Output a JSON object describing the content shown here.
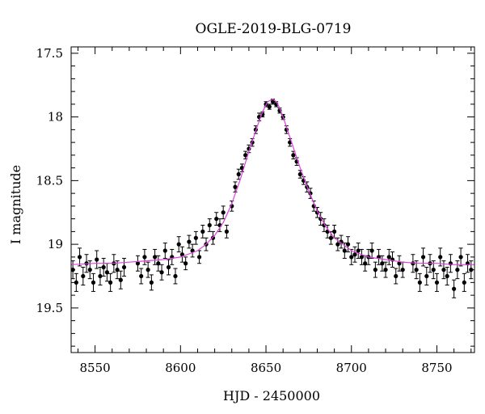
{
  "chart_data": {
    "type": "scatter",
    "title": "OGLE-2019-BLG-0719",
    "xlabel": "HJD - 2450000",
    "ylabel": "I magnitude",
    "xlim": [
      8536,
      8772
    ],
    "ylim": [
      19.85,
      17.45
    ],
    "y_inverted": true,
    "grid": false,
    "x_ticks": [
      8550,
      8600,
      8650,
      8700,
      8750
    ],
    "x_tick_labels": [
      "8550",
      "8600",
      "8650",
      "8700",
      "8750"
    ],
    "y_ticks": [
      17.5,
      18,
      18.5,
      19,
      19.5
    ],
    "y_tick_labels": [
      "17.5",
      "18",
      "18.5",
      "19",
      "19.5"
    ],
    "series": [
      {
        "kind": "points_with_errorbars",
        "color": "#000000",
        "x": [
          8537,
          8539,
          8541,
          8543,
          8545,
          8547,
          8549,
          8551,
          8553,
          8555,
          8557,
          8559,
          8561,
          8563,
          8565,
          8567,
          8575,
          8577,
          8579,
          8581,
          8583,
          8585,
          8587,
          8589,
          8591,
          8593,
          8595,
          8597,
          8599,
          8601,
          8603,
          8605,
          8607,
          8609,
          8611,
          8613,
          8615,
          8617,
          8619,
          8621,
          8623,
          8625,
          8627,
          8630,
          8632,
          8634,
          8636,
          8638,
          8640,
          8642,
          8644,
          8646,
          8648,
          8650,
          8652,
          8654,
          8656,
          8658,
          8660,
          8662,
          8664,
          8666,
          8668,
          8670,
          8672,
          8674,
          8676,
          8678,
          8680,
          8682,
          8684,
          8686,
          8688,
          8690,
          8692,
          8694,
          8696,
          8698,
          8700,
          8702,
          8704,
          8706,
          8708,
          8710,
          8712,
          8714,
          8716,
          8718,
          8720,
          8722,
          8724,
          8726,
          8728,
          8730,
          8736,
          8738,
          8740,
          8742,
          8744,
          8746,
          8748,
          8750,
          8752,
          8754,
          8756,
          8758,
          8760,
          8762,
          8764,
          8766,
          8768,
          8770
        ],
        "y": [
          19.2,
          19.3,
          19.1,
          19.25,
          19.15,
          19.2,
          19.3,
          19.12,
          19.25,
          19.18,
          19.22,
          19.3,
          19.15,
          19.2,
          19.28,
          19.18,
          19.15,
          19.25,
          19.1,
          19.2,
          19.3,
          19.1,
          19.15,
          19.22,
          19.05,
          19.18,
          19.1,
          19.25,
          19.0,
          19.08,
          19.15,
          18.98,
          19.05,
          18.95,
          19.1,
          18.9,
          19.0,
          18.85,
          18.95,
          18.8,
          18.85,
          18.75,
          18.9,
          18.7,
          18.55,
          18.45,
          18.4,
          18.3,
          18.25,
          18.2,
          18.1,
          18.0,
          17.98,
          17.9,
          17.92,
          17.88,
          17.9,
          17.95,
          18.0,
          18.1,
          18.2,
          18.3,
          18.35,
          18.45,
          18.5,
          18.55,
          18.6,
          18.7,
          18.75,
          18.8,
          18.85,
          18.9,
          18.95,
          18.9,
          19.0,
          18.98,
          19.05,
          19.0,
          19.1,
          19.08,
          19.05,
          19.1,
          19.15,
          19.1,
          19.05,
          19.2,
          19.1,
          19.15,
          19.2,
          19.1,
          19.12,
          19.25,
          19.15,
          19.2,
          19.15,
          19.2,
          19.3,
          19.1,
          19.25,
          19.15,
          19.2,
          19.3,
          19.1,
          19.2,
          19.25,
          19.15,
          19.35,
          19.2,
          19.1,
          19.3,
          19.15,
          19.2
        ],
        "yerr": [
          0.07,
          0.07,
          0.07,
          0.07,
          0.07,
          0.07,
          0.07,
          0.07,
          0.07,
          0.07,
          0.07,
          0.07,
          0.07,
          0.07,
          0.07,
          0.07,
          0.06,
          0.06,
          0.06,
          0.06,
          0.06,
          0.06,
          0.06,
          0.06,
          0.06,
          0.06,
          0.06,
          0.06,
          0.06,
          0.06,
          0.05,
          0.05,
          0.05,
          0.05,
          0.05,
          0.05,
          0.05,
          0.05,
          0.05,
          0.05,
          0.05,
          0.05,
          0.05,
          0.04,
          0.04,
          0.04,
          0.03,
          0.03,
          0.03,
          0.03,
          0.03,
          0.03,
          0.02,
          0.02,
          0.02,
          0.02,
          0.02,
          0.02,
          0.02,
          0.03,
          0.03,
          0.03,
          0.03,
          0.03,
          0.03,
          0.04,
          0.04,
          0.04,
          0.04,
          0.05,
          0.05,
          0.05,
          0.05,
          0.05,
          0.05,
          0.05,
          0.06,
          0.06,
          0.06,
          0.06,
          0.06,
          0.06,
          0.06,
          0.06,
          0.06,
          0.06,
          0.06,
          0.06,
          0.06,
          0.06,
          0.06,
          0.06,
          0.06,
          0.06,
          0.07,
          0.07,
          0.07,
          0.07,
          0.07,
          0.07,
          0.07,
          0.07,
          0.07,
          0.07,
          0.07,
          0.07,
          0.07,
          0.07,
          0.07,
          0.07,
          0.07,
          0.07
        ]
      },
      {
        "kind": "model_curve",
        "color": "#e040e0",
        "x": [
          8536,
          8550,
          8560,
          8570,
          8580,
          8590,
          8600,
          8610,
          8615,
          8620,
          8625,
          8630,
          8635,
          8640,
          8645,
          8648,
          8651,
          8654,
          8656,
          8658,
          8660,
          8663,
          8666,
          8670,
          8675,
          8680,
          8685,
          8690,
          8700,
          8710,
          8720,
          8730,
          8740,
          8750,
          8760,
          8772
        ],
        "y": [
          19.16,
          19.15,
          19.15,
          19.14,
          19.13,
          19.12,
          19.1,
          19.05,
          19.0,
          18.93,
          18.83,
          18.68,
          18.49,
          18.27,
          18.07,
          17.96,
          17.88,
          17.86,
          17.88,
          17.93,
          18.0,
          18.12,
          18.24,
          18.4,
          18.58,
          18.74,
          18.86,
          18.95,
          19.05,
          19.1,
          19.12,
          19.14,
          19.15,
          19.15,
          19.16,
          19.16
        ]
      }
    ]
  }
}
